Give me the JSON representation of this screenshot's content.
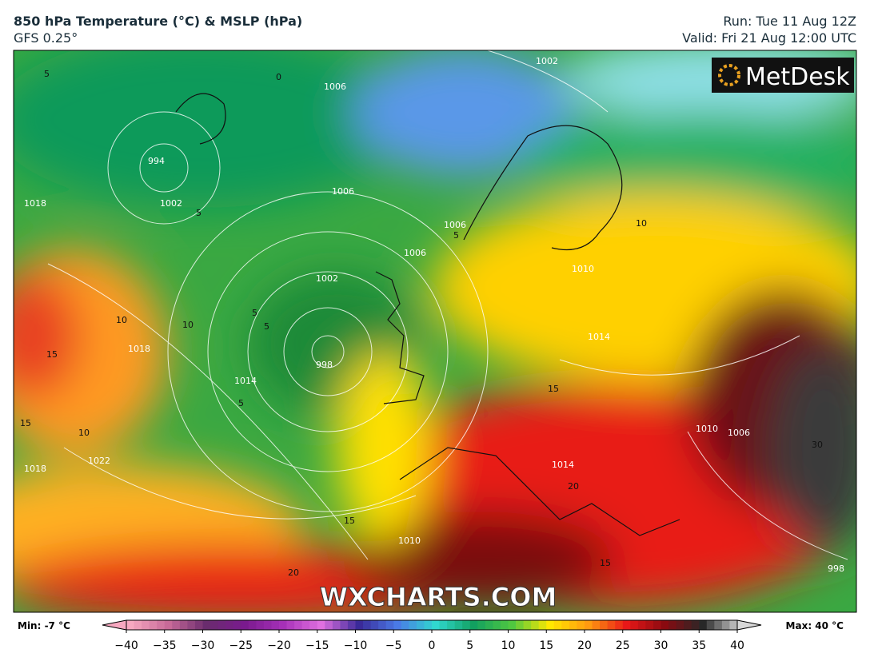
{
  "header": {
    "title": "850 hPa Temperature (°C) & MSLP (hPa)",
    "model": "GFS 0.25°",
    "run": "Run: Tue 11 Aug 12Z",
    "valid": "Valid: Fri 21 Aug 12:00 UTC"
  },
  "logo": "MetDesk",
  "watermark": "WXCHARTS.COM",
  "map": {
    "isobar_labels": [
      "1002",
      "1006",
      "994",
      "1002",
      "1006",
      "1006",
      "1006",
      "1002",
      "998",
      "1014",
      "1018",
      "1018",
      "1022",
      "1018",
      "1014",
      "1014",
      "1010",
      "1010",
      "1010",
      "1006",
      "998"
    ],
    "isotherm_labels": [
      "5",
      "0",
      "5",
      "5",
      "10",
      "10",
      "10",
      "15",
      "5",
      "5",
      "5",
      "10",
      "15",
      "15",
      "15",
      "20",
      "20",
      "15",
      "30"
    ]
  },
  "colorbar": {
    "min_label": "Min: -7 °C",
    "max_label": "Max: 40 °C",
    "ticks": [
      {
        "value": -40,
        "label": "−40"
      },
      {
        "value": -35,
        "label": "−35"
      },
      {
        "value": -30,
        "label": "−30"
      },
      {
        "value": -25,
        "label": "−25"
      },
      {
        "value": -20,
        "label": "−20"
      },
      {
        "value": -15,
        "label": "−15"
      },
      {
        "value": -10,
        "label": "−10"
      },
      {
        "value": -5,
        "label": "−5"
      },
      0,
      5,
      10,
      15,
      20,
      25,
      30,
      35,
      40
    ],
    "colors": [
      "#f7a8c0",
      "#c86a98",
      "#6a2c6e",
      "#7a1a8e",
      "#a630b8",
      "#e070e0",
      "#3a2a9a",
      "#4a7ae6",
      "#30d8d0",
      "#12a060",
      "#50c840",
      "#ffe800",
      "#ff9a10",
      "#e81818",
      "#8a0a10",
      "#282828",
      "#d8d8d8"
    ],
    "xlim": [
      -40,
      40
    ]
  }
}
